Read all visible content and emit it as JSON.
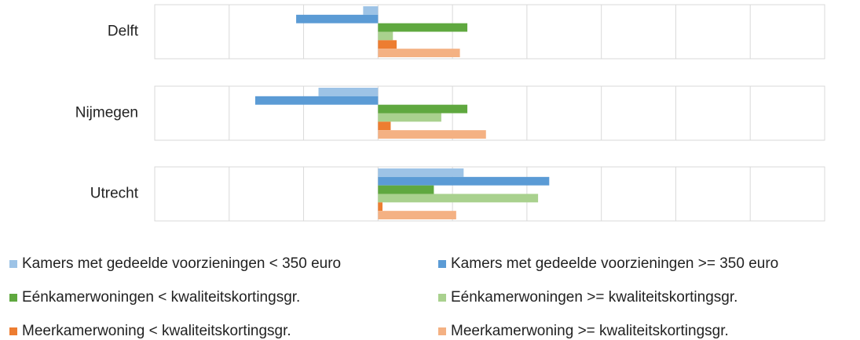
{
  "chart_data": {
    "type": "bar",
    "orientation": "horizontal",
    "categories": [
      "Delft",
      "Nijmegen",
      "Utrecht"
    ],
    "series": [
      {
        "name": "Kamers met gedeelde voorzieningen < 350 euro",
        "color": "#9dc3e6",
        "values": [
          -0.2,
          -0.8,
          1.15
        ]
      },
      {
        "name": "Kamers met gedeelde voorzieningen >= 350 euro",
        "color": "#5b9bd5",
        "values": [
          -1.1,
          -1.65,
          2.3
        ]
      },
      {
        "name": "Eénkamerwoningen < kwaliteitskortingsgr.",
        "color": "#5fa83f",
        "values": [
          1.2,
          1.2,
          0.75
        ]
      },
      {
        "name": "Eénkamerwoningen >= kwaliteitskortingsgr.",
        "color": "#a9d18e",
        "values": [
          0.2,
          0.85,
          2.15
        ]
      },
      {
        "name": "Meerkamerwoning < kwaliteitskortingsgr.",
        "color": "#ed7d31",
        "values": [
          0.25,
          0.17,
          0.06
        ]
      },
      {
        "name": "Meerkamerwoning >= kwaliteitskortingsgr.",
        "color": "#f4b183",
        "values": [
          1.1,
          1.45,
          1.05
        ]
      }
    ],
    "xlim": [
      -3,
      6
    ],
    "xticks": [
      -3,
      -2,
      -1,
      0,
      1,
      2,
      3,
      4,
      5,
      6
    ],
    "grid": true,
    "legend": "bottom"
  }
}
